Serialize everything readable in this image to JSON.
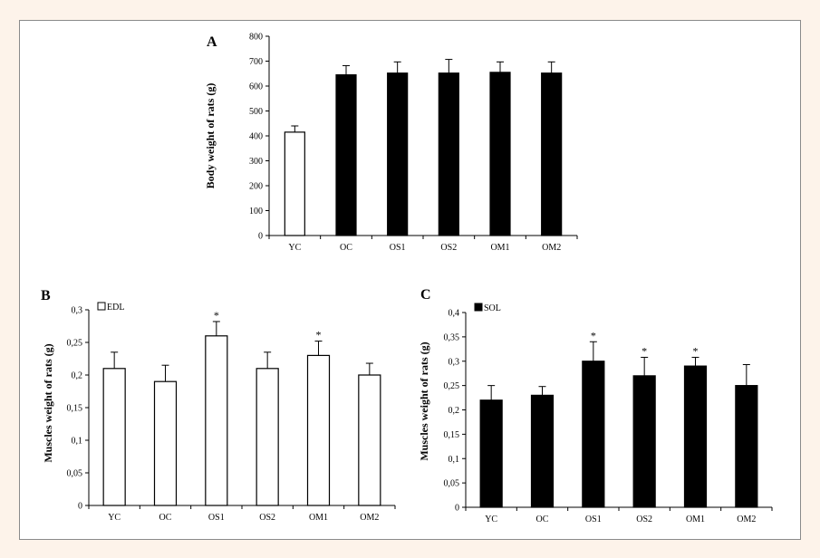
{
  "chart_data": [
    {
      "type": "bar",
      "panel": "A",
      "ylabel": "Body weight  of rats  (g)",
      "ylim": [
        0,
        800
      ],
      "yticks": [
        "0",
        "100",
        "200",
        "300",
        "400",
        "500",
        "600",
        "700",
        "800"
      ],
      "categories": [
        "YC",
        "OC",
        "OS1",
        "OS2",
        "OM1",
        "OM2"
      ],
      "values": [
        415,
        645,
        652,
        652,
        655,
        652
      ],
      "errors": [
        25,
        37,
        45,
        55,
        42,
        45
      ],
      "bar_fill": [
        "white",
        "black",
        "black",
        "black",
        "black",
        "black"
      ],
      "significance": [
        "",
        "",
        "",
        "",
        "",
        ""
      ],
      "legend": ""
    },
    {
      "type": "bar",
      "panel": "B",
      "ylabel": "Muscles  weight  of rats (g)",
      "ylim": [
        0,
        0.3
      ],
      "yticks": [
        "0",
        "0,05",
        "0,1",
        "0,15",
        "0,2",
        "0,25",
        "0,3"
      ],
      "categories": [
        "YC",
        "OC",
        "OS1",
        "OS2",
        "OM1",
        "OM2"
      ],
      "values": [
        0.21,
        0.19,
        0.26,
        0.21,
        0.23,
        0.2
      ],
      "errors": [
        0.025,
        0.025,
        0.022,
        0.025,
        0.022,
        0.018
      ],
      "bar_fill": [
        "white",
        "white",
        "white",
        "white",
        "white",
        "white"
      ],
      "significance": [
        "",
        "",
        "*",
        "",
        "*",
        ""
      ],
      "legend": "EDL"
    },
    {
      "type": "bar",
      "panel": "C",
      "ylabel": "Muscles weight of rats (g)",
      "ylim": [
        0,
        0.4
      ],
      "yticks": [
        "0",
        "0,05",
        "0,1",
        "0,15",
        "0,2",
        "0,25",
        "0,3",
        "0,35",
        "0,4"
      ],
      "categories": [
        "YC",
        "OC",
        "OS1",
        "OS2",
        "OM1",
        "OM2"
      ],
      "values": [
        0.22,
        0.23,
        0.3,
        0.27,
        0.29,
        0.25
      ],
      "errors": [
        0.03,
        0.018,
        0.04,
        0.038,
        0.018,
        0.043
      ],
      "bar_fill": [
        "black",
        "black",
        "black",
        "black",
        "black",
        "black"
      ],
      "significance": [
        "",
        "",
        "*",
        "*",
        "*",
        ""
      ],
      "legend": "SOL"
    }
  ],
  "colors": {
    "page_background": "#fdf3ea",
    "frame_border": "#8a8a8a",
    "bar_dark": "#000000",
    "bar_light": "#ffffff"
  }
}
